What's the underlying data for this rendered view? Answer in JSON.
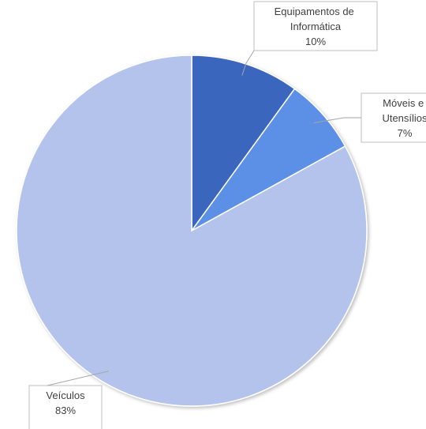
{
  "chart_data": {
    "type": "pie",
    "categories": [
      "Equipamentos de Informática",
      "Móveis e Utensílios",
      "Veículos"
    ],
    "values": [
      10,
      7,
      83
    ],
    "value_labels": [
      "10%",
      "7%",
      "83%"
    ],
    "colors": [
      "#3b66bd",
      "#5c8fe6",
      "#b3c3ec"
    ]
  }
}
